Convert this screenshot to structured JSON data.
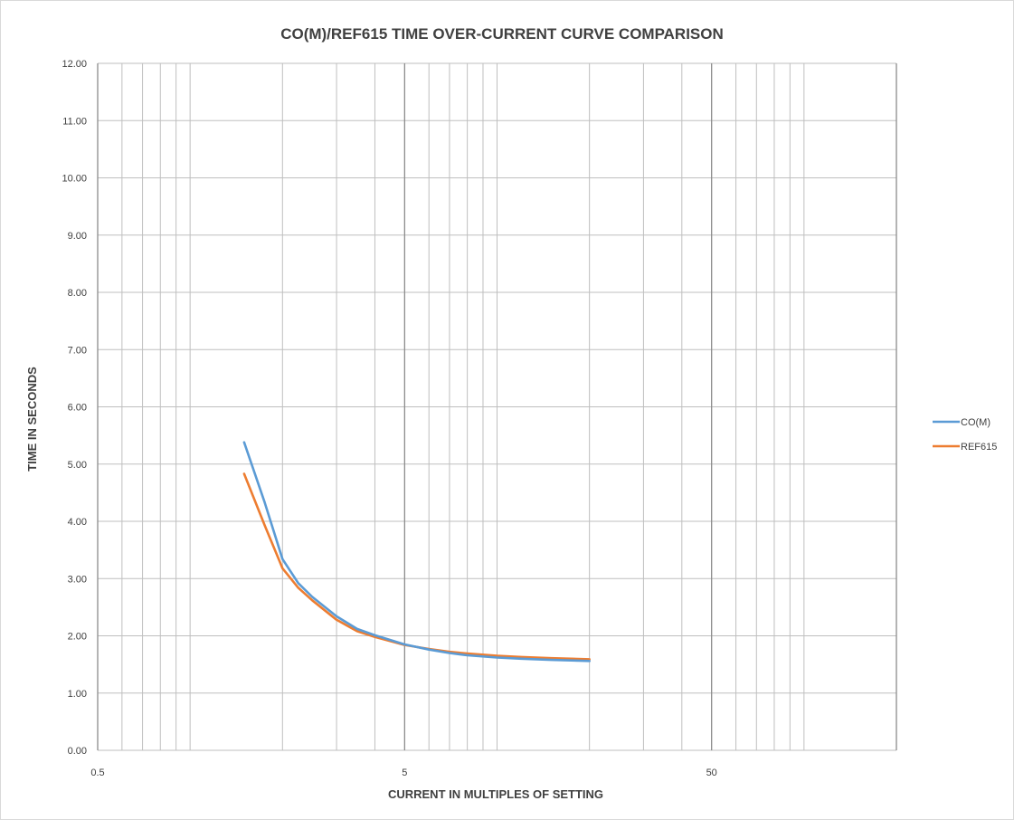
{
  "chart_data": {
    "type": "line",
    "title": "CO(M)/REF615 TIME OVER-CURRENT CURVE COMPARISON",
    "xlabel": "CURRENT IN MULTIPLES OF SETTING",
    "ylabel": "TIME IN SECONDS",
    "x_scale": "log",
    "xlim": [
      0.5,
      200
    ],
    "ylim": [
      0,
      12
    ],
    "x_tick_labels": [
      "0.5",
      "5",
      "50"
    ],
    "y_ticks": [
      "0.00",
      "1.00",
      "2.00",
      "3.00",
      "4.00",
      "5.00",
      "6.00",
      "7.00",
      "8.00",
      "9.00",
      "10.00",
      "11.00",
      "12.00"
    ],
    "grid": true,
    "legend_position": "right",
    "series": [
      {
        "name": "CO(M)",
        "color": "#5b9bd5",
        "x": [
          1.5,
          1.75,
          2.0,
          2.25,
          2.5,
          3.0,
          3.5,
          4.0,
          5.0,
          6.0,
          7.0,
          8.0,
          10.0,
          12.0,
          15.0,
          20.0
        ],
        "y": [
          5.38,
          4.33,
          3.34,
          2.92,
          2.68,
          2.34,
          2.12,
          2.01,
          1.85,
          1.76,
          1.7,
          1.66,
          1.62,
          1.6,
          1.58,
          1.56
        ]
      },
      {
        "name": "REF615",
        "color": "#ed7d31",
        "x": [
          1.5,
          1.75,
          2.0,
          2.25,
          2.5,
          3.0,
          3.5,
          4.0,
          5.0,
          6.0,
          7.0,
          8.0,
          10.0,
          12.0,
          15.0,
          20.0
        ],
        "y": [
          4.83,
          3.93,
          3.18,
          2.84,
          2.62,
          2.28,
          2.08,
          1.98,
          1.84,
          1.77,
          1.72,
          1.69,
          1.65,
          1.63,
          1.61,
          1.59
        ]
      }
    ]
  }
}
